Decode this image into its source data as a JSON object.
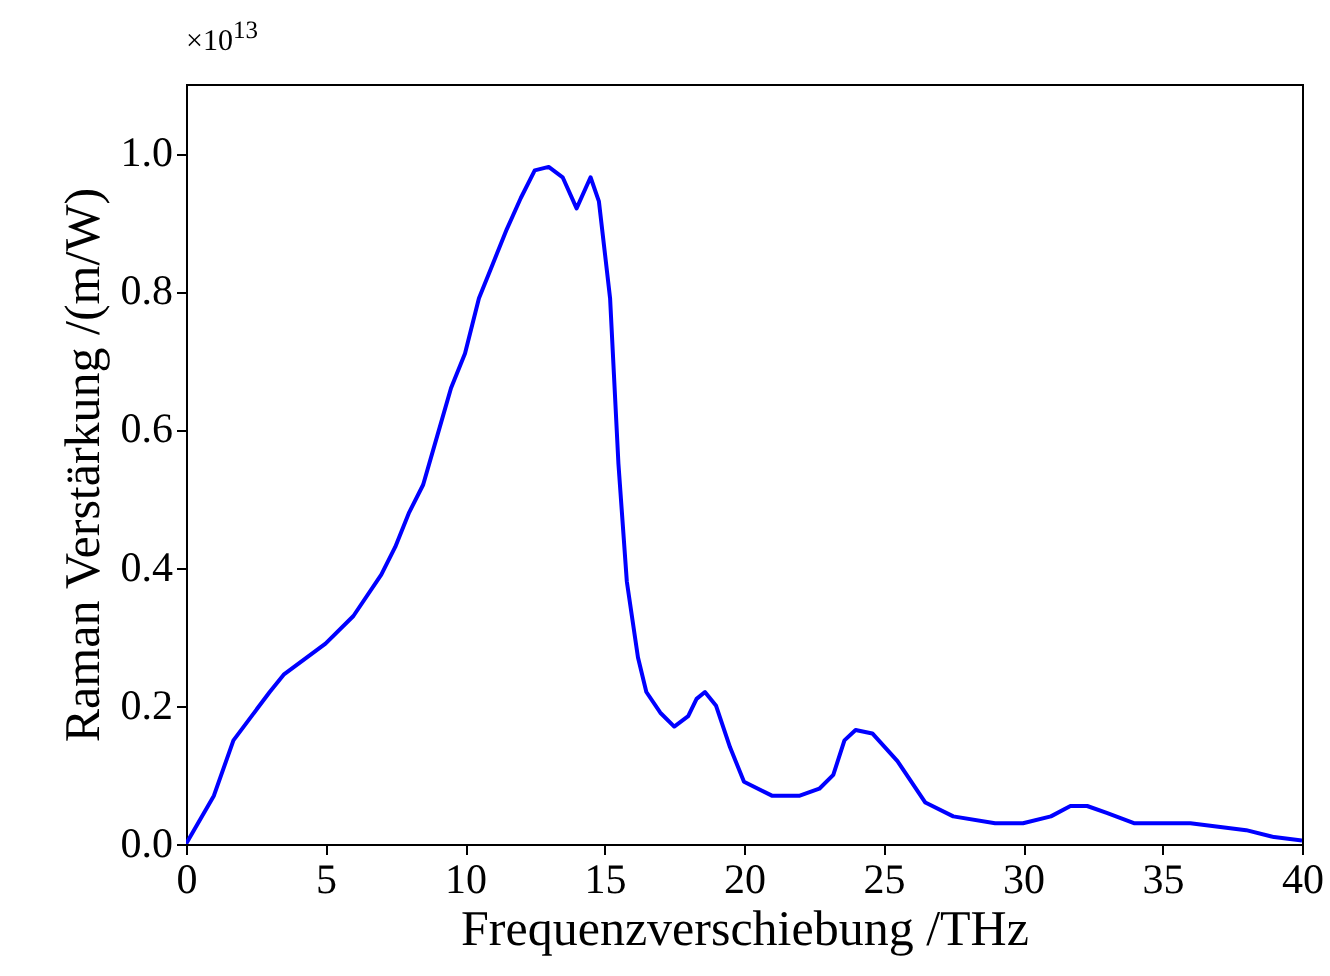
{
  "chart_data": {
    "type": "line",
    "xlabel": "Frequenzverschiebung /THz",
    "ylabel": "Raman Verstärkung /(m/W)",
    "annotations": [
      "×10$^{13}$"
    ],
    "x": [
      0,
      1,
      1.7,
      3,
      3.5,
      5,
      6,
      7,
      7.5,
      8,
      8.5,
      9,
      9.5,
      10,
      10.5,
      11,
      11.5,
      12,
      12.5,
      13,
      13.5,
      14,
      14.5,
      14.8,
      15.2,
      15.5,
      15.8,
      16.2,
      16.5,
      17,
      17.5,
      18,
      18.3,
      18.6,
      19,
      19.5,
      20,
      21,
      22,
      22.7,
      23.2,
      23.6,
      24,
      24.6,
      25.5,
      26.5,
      27.5,
      29,
      30,
      31,
      31.7,
      32.3,
      33,
      34,
      35,
      36,
      37,
      38,
      39,
      40
    ],
    "series": [
      {
        "color": "#0000ff",
        "values": [
          0,
          0.07,
          0.15,
          0.22,
          0.245,
          0.29,
          0.33,
          0.39,
          0.43,
          0.48,
          0.52,
          0.59,
          0.66,
          0.71,
          0.79,
          0.84,
          0.89,
          0.935,
          0.975,
          0.98,
          0.965,
          0.92,
          0.965,
          0.93,
          0.79,
          0.55,
          0.38,
          0.27,
          0.22,
          0.19,
          0.17,
          0.185,
          0.21,
          0.22,
          0.2,
          0.14,
          0.09,
          0.07,
          0.07,
          0.08,
          0.1,
          0.15,
          0.165,
          0.16,
          0.12,
          0.06,
          0.04,
          0.03,
          0.03,
          0.04,
          0.055,
          0.055,
          0.045,
          0.03,
          0.03,
          0.03,
          0.025,
          0.02,
          0.01,
          0.005
        ]
      }
    ],
    "xlim": [
      0,
      40
    ],
    "xticks": [
      {
        "value": 0,
        "label": "0"
      },
      5,
      10,
      15,
      20,
      25,
      30,
      35,
      40
    ],
    "ylim": [
      0,
      1.1
    ],
    "yticks": [
      {
        "value": 0,
        "label": "0.0"
      },
      0.2,
      0.4,
      0.6,
      0.8,
      {
        "value": 1,
        "label": "1.0"
      }
    ],
    "grid": false,
    "legend": false
  }
}
